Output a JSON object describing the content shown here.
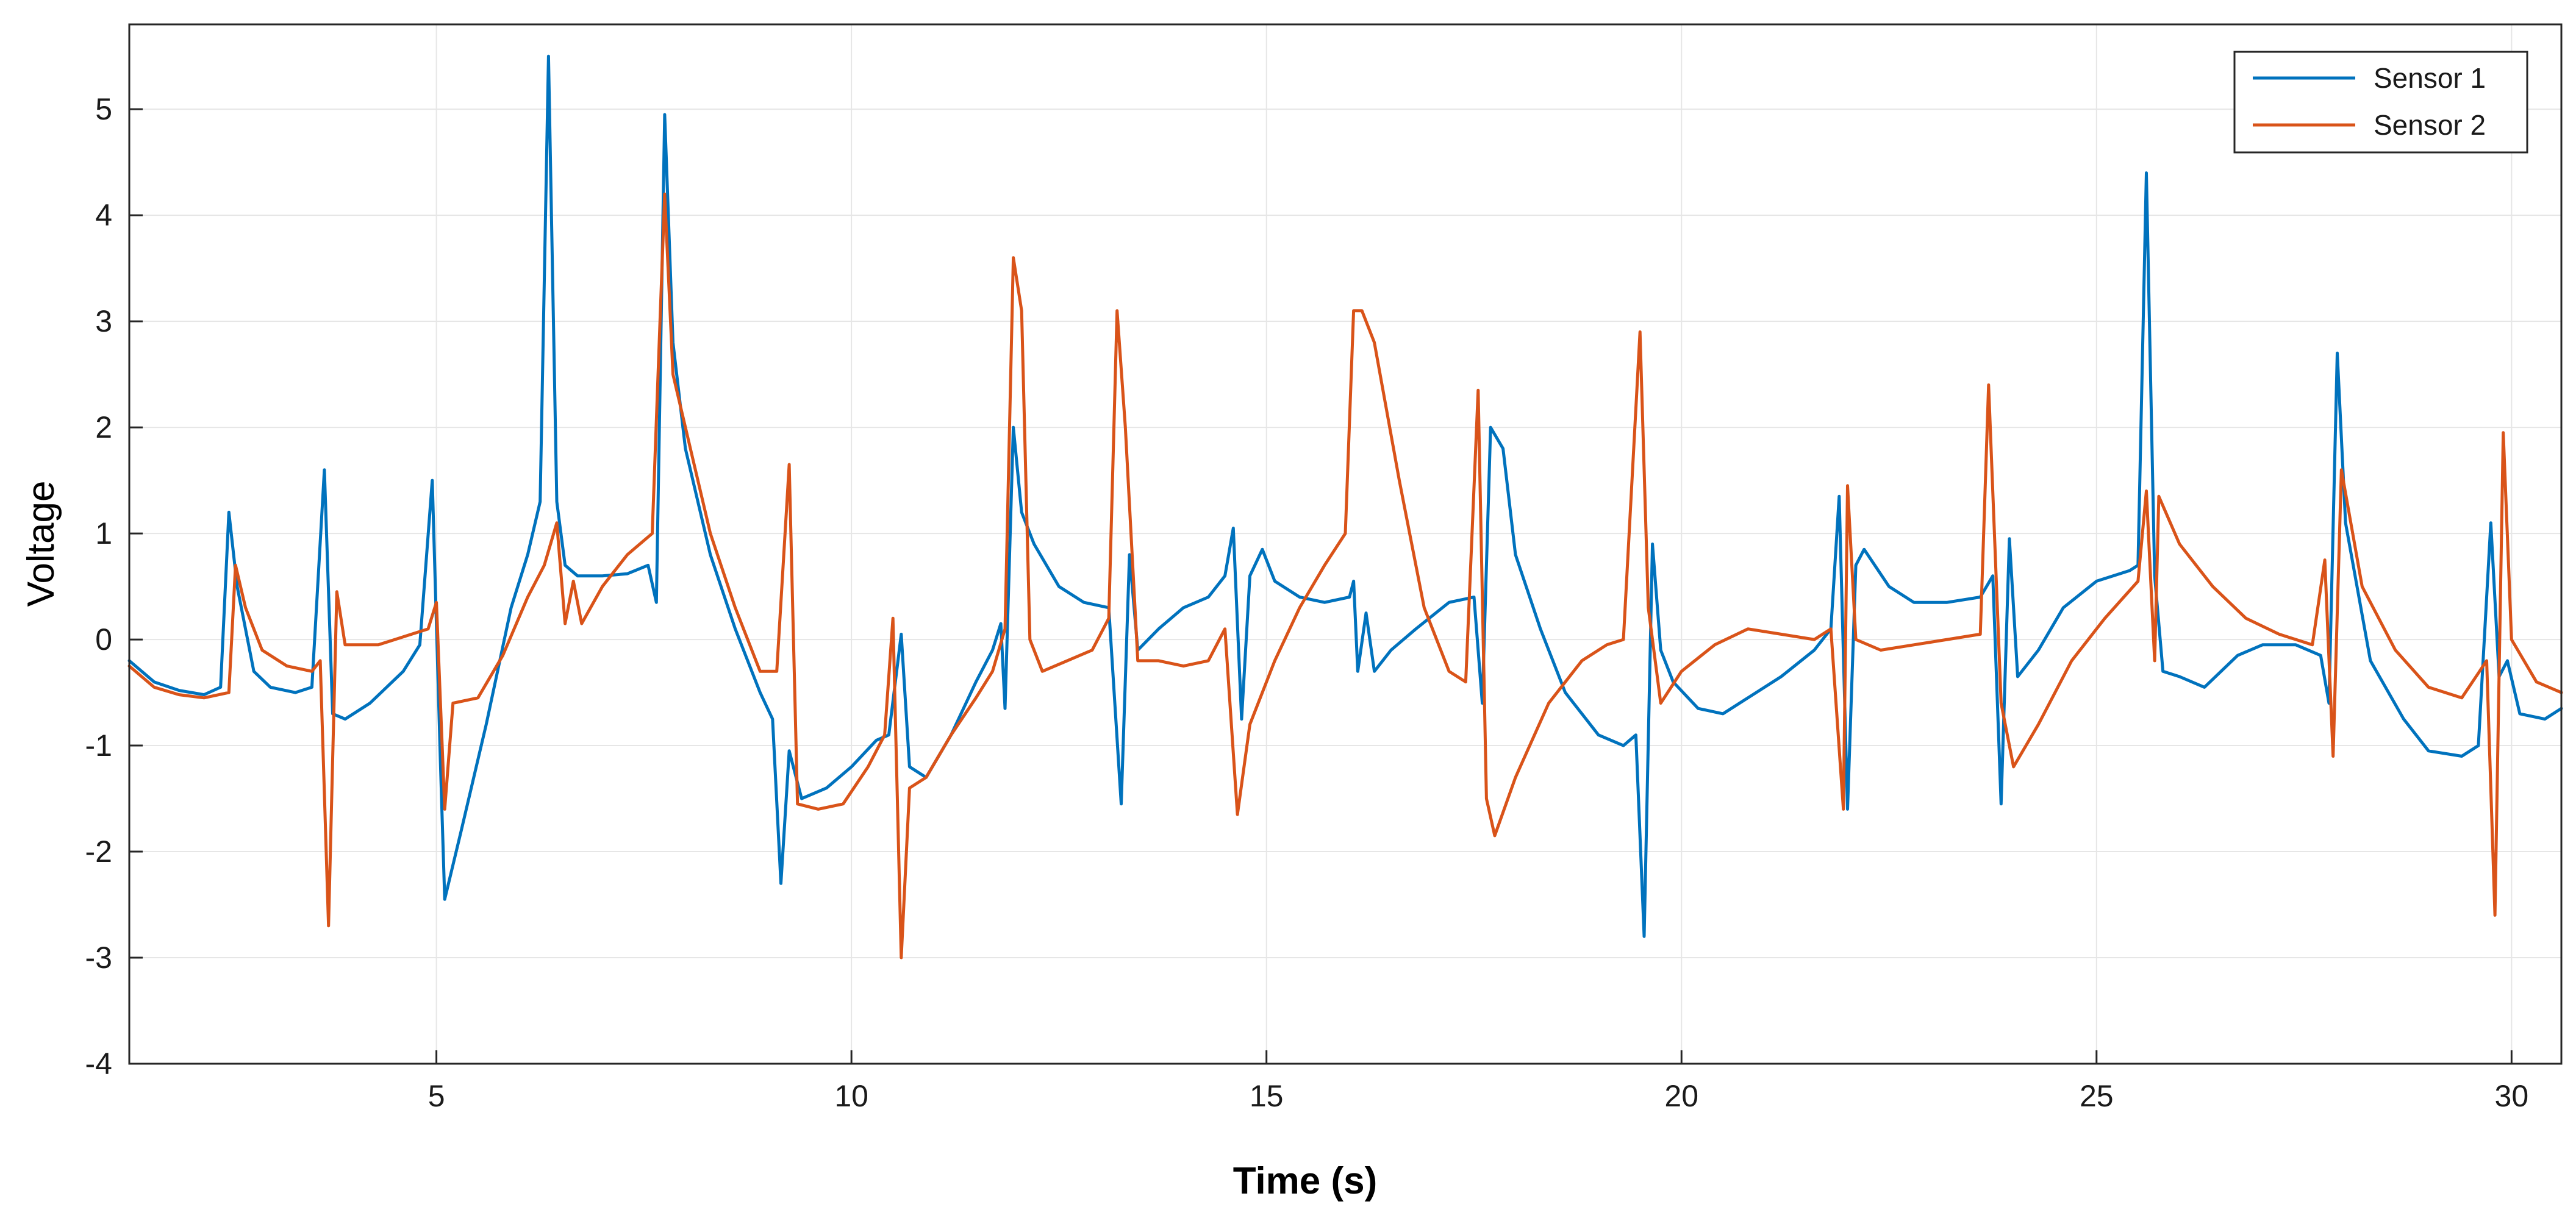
{
  "chart_data": {
    "type": "line",
    "title": "",
    "xlabel": "Time (s)",
    "ylabel": "Voltage",
    "xlim": [
      1.3,
      30.6
    ],
    "ylim": [
      -4,
      5.8
    ],
    "x_ticks": [
      5,
      10,
      15,
      20,
      25,
      30
    ],
    "y_ticks": [
      -4,
      -3,
      -2,
      -1,
      0,
      1,
      2,
      3,
      4,
      5
    ],
    "grid": true,
    "legend_position": "top-right",
    "series": [
      {
        "name": "Sensor 1",
        "color": "#0072BD",
        "points": [
          [
            1.3,
            -0.2
          ],
          [
            1.6,
            -0.4
          ],
          [
            1.9,
            -0.48
          ],
          [
            2.2,
            -0.52
          ],
          [
            2.4,
            -0.45
          ],
          [
            2.5,
            1.2
          ],
          [
            2.6,
            0.5
          ],
          [
            2.8,
            -0.3
          ],
          [
            3.0,
            -0.45
          ],
          [
            3.3,
            -0.5
          ],
          [
            3.5,
            -0.45
          ],
          [
            3.65,
            1.6
          ],
          [
            3.75,
            -0.7
          ],
          [
            3.9,
            -0.75
          ],
          [
            4.2,
            -0.6
          ],
          [
            4.6,
            -0.3
          ],
          [
            4.8,
            -0.05
          ],
          [
            4.95,
            1.5
          ],
          [
            5.05,
            -1.2
          ],
          [
            5.1,
            -2.45
          ],
          [
            5.3,
            -1.8
          ],
          [
            5.6,
            -0.8
          ],
          [
            5.9,
            0.3
          ],
          [
            6.1,
            0.8
          ],
          [
            6.25,
            1.3
          ],
          [
            6.35,
            5.5
          ],
          [
            6.45,
            1.3
          ],
          [
            6.55,
            0.7
          ],
          [
            6.7,
            0.6
          ],
          [
            7.0,
            0.6
          ],
          [
            7.3,
            0.62
          ],
          [
            7.55,
            0.7
          ],
          [
            7.65,
            0.35
          ],
          [
            7.75,
            4.95
          ],
          [
            7.85,
            2.8
          ],
          [
            8.0,
            1.8
          ],
          [
            8.3,
            0.8
          ],
          [
            8.6,
            0.1
          ],
          [
            8.9,
            -0.5
          ],
          [
            9.05,
            -0.75
          ],
          [
            9.15,
            -2.3
          ],
          [
            9.25,
            -1.05
          ],
          [
            9.4,
            -1.5
          ],
          [
            9.7,
            -1.4
          ],
          [
            10.0,
            -1.2
          ],
          [
            10.3,
            -0.95
          ],
          [
            10.45,
            -0.9
          ],
          [
            10.6,
            0.05
          ],
          [
            10.7,
            -1.2
          ],
          [
            10.9,
            -1.3
          ],
          [
            11.2,
            -0.9
          ],
          [
            11.5,
            -0.4
          ],
          [
            11.7,
            -0.1
          ],
          [
            11.8,
            0.15
          ],
          [
            11.85,
            -0.65
          ],
          [
            11.95,
            2.0
          ],
          [
            12.05,
            1.2
          ],
          [
            12.2,
            0.9
          ],
          [
            12.5,
            0.5
          ],
          [
            12.8,
            0.35
          ],
          [
            13.1,
            0.3
          ],
          [
            13.25,
            -1.55
          ],
          [
            13.35,
            0.8
          ],
          [
            13.45,
            -0.1
          ],
          [
            13.7,
            0.1
          ],
          [
            14.0,
            0.3
          ],
          [
            14.3,
            0.4
          ],
          [
            14.5,
            0.6
          ],
          [
            14.6,
            1.05
          ],
          [
            14.7,
            -0.75
          ],
          [
            14.8,
            0.6
          ],
          [
            14.95,
            0.85
          ],
          [
            15.1,
            0.55
          ],
          [
            15.4,
            0.4
          ],
          [
            15.7,
            0.35
          ],
          [
            16.0,
            0.4
          ],
          [
            16.05,
            0.55
          ],
          [
            16.1,
            -0.3
          ],
          [
            16.2,
            0.25
          ],
          [
            16.3,
            -0.3
          ],
          [
            16.5,
            -0.1
          ],
          [
            16.8,
            0.1
          ],
          [
            17.2,
            0.35
          ],
          [
            17.5,
            0.4
          ],
          [
            17.6,
            -0.6
          ],
          [
            17.7,
            2.0
          ],
          [
            17.85,
            1.8
          ],
          [
            18.0,
            0.8
          ],
          [
            18.3,
            0.1
          ],
          [
            18.6,
            -0.5
          ],
          [
            19.0,
            -0.9
          ],
          [
            19.3,
            -1.0
          ],
          [
            19.45,
            -0.9
          ],
          [
            19.55,
            -2.8
          ],
          [
            19.65,
            0.9
          ],
          [
            19.75,
            -0.1
          ],
          [
            19.9,
            -0.4
          ],
          [
            20.2,
            -0.65
          ],
          [
            20.5,
            -0.7
          ],
          [
            20.8,
            -0.55
          ],
          [
            21.2,
            -0.35
          ],
          [
            21.6,
            -0.1
          ],
          [
            21.8,
            0.1
          ],
          [
            21.9,
            1.35
          ],
          [
            22.0,
            -1.6
          ],
          [
            22.1,
            0.7
          ],
          [
            22.2,
            0.85
          ],
          [
            22.5,
            0.5
          ],
          [
            22.8,
            0.35
          ],
          [
            23.2,
            0.35
          ],
          [
            23.6,
            0.4
          ],
          [
            23.75,
            0.6
          ],
          [
            23.85,
            -1.55
          ],
          [
            23.95,
            0.95
          ],
          [
            24.05,
            -0.35
          ],
          [
            24.3,
            -0.1
          ],
          [
            24.6,
            0.3
          ],
          [
            25.0,
            0.55
          ],
          [
            25.4,
            0.65
          ],
          [
            25.5,
            0.7
          ],
          [
            25.6,
            4.4
          ],
          [
            25.7,
            0.6
          ],
          [
            25.8,
            -0.3
          ],
          [
            26.0,
            -0.35
          ],
          [
            26.3,
            -0.45
          ],
          [
            26.7,
            -0.15
          ],
          [
            27.0,
            -0.05
          ],
          [
            27.4,
            -0.05
          ],
          [
            27.7,
            -0.15
          ],
          [
            27.8,
            -0.6
          ],
          [
            27.9,
            2.7
          ],
          [
            28.0,
            1.1
          ],
          [
            28.3,
            -0.2
          ],
          [
            28.7,
            -0.75
          ],
          [
            29.0,
            -1.05
          ],
          [
            29.4,
            -1.1
          ],
          [
            29.6,
            -1.0
          ],
          [
            29.75,
            1.1
          ],
          [
            29.85,
            -0.35
          ],
          [
            29.95,
            -0.2
          ],
          [
            30.1,
            -0.7
          ],
          [
            30.4,
            -0.75
          ],
          [
            30.6,
            -0.65
          ]
        ]
      },
      {
        "name": "Sensor 2",
        "color": "#D95319",
        "points": [
          [
            1.3,
            -0.25
          ],
          [
            1.6,
            -0.45
          ],
          [
            1.9,
            -0.52
          ],
          [
            2.2,
            -0.55
          ],
          [
            2.5,
            -0.5
          ],
          [
            2.58,
            0.7
          ],
          [
            2.7,
            0.3
          ],
          [
            2.9,
            -0.1
          ],
          [
            3.2,
            -0.25
          ],
          [
            3.5,
            -0.3
          ],
          [
            3.6,
            -0.2
          ],
          [
            3.7,
            -2.7
          ],
          [
            3.8,
            0.45
          ],
          [
            3.9,
            -0.05
          ],
          [
            4.3,
            -0.05
          ],
          [
            4.7,
            0.05
          ],
          [
            4.9,
            0.1
          ],
          [
            5.0,
            0.35
          ],
          [
            5.1,
            -1.6
          ],
          [
            5.2,
            -0.6
          ],
          [
            5.5,
            -0.55
          ],
          [
            5.8,
            -0.15
          ],
          [
            6.1,
            0.4
          ],
          [
            6.3,
            0.7
          ],
          [
            6.45,
            1.1
          ],
          [
            6.55,
            0.15
          ],
          [
            6.65,
            0.55
          ],
          [
            6.75,
            0.15
          ],
          [
            7.0,
            0.5
          ],
          [
            7.3,
            0.8
          ],
          [
            7.6,
            1.0
          ],
          [
            7.75,
            4.2
          ],
          [
            7.85,
            2.5
          ],
          [
            8.0,
            2.0
          ],
          [
            8.3,
            1.0
          ],
          [
            8.6,
            0.3
          ],
          [
            8.9,
            -0.3
          ],
          [
            9.1,
            -0.3
          ],
          [
            9.25,
            1.65
          ],
          [
            9.35,
            -1.55
          ],
          [
            9.6,
            -1.6
          ],
          [
            9.9,
            -1.55
          ],
          [
            10.2,
            -1.2
          ],
          [
            10.4,
            -0.9
          ],
          [
            10.5,
            0.2
          ],
          [
            10.6,
            -3.0
          ],
          [
            10.7,
            -1.4
          ],
          [
            10.9,
            -1.3
          ],
          [
            11.2,
            -0.9
          ],
          [
            11.5,
            -0.55
          ],
          [
            11.7,
            -0.3
          ],
          [
            11.85,
            0.1
          ],
          [
            11.95,
            3.6
          ],
          [
            12.05,
            3.1
          ],
          [
            12.15,
            0.0
          ],
          [
            12.3,
            -0.3
          ],
          [
            12.6,
            -0.2
          ],
          [
            12.9,
            -0.1
          ],
          [
            13.1,
            0.2
          ],
          [
            13.2,
            3.1
          ],
          [
            13.3,
            2.0
          ],
          [
            13.45,
            -0.2
          ],
          [
            13.7,
            -0.2
          ],
          [
            14.0,
            -0.25
          ],
          [
            14.3,
            -0.2
          ],
          [
            14.5,
            0.1
          ],
          [
            14.65,
            -1.65
          ],
          [
            14.8,
            -0.8
          ],
          [
            15.1,
            -0.2
          ],
          [
            15.4,
            0.3
          ],
          [
            15.7,
            0.7
          ],
          [
            15.95,
            1.0
          ],
          [
            16.05,
            3.1
          ],
          [
            16.15,
            3.1
          ],
          [
            16.3,
            2.8
          ],
          [
            16.6,
            1.5
          ],
          [
            16.9,
            0.3
          ],
          [
            17.2,
            -0.3
          ],
          [
            17.4,
            -0.4
          ],
          [
            17.55,
            2.35
          ],
          [
            17.65,
            -1.5
          ],
          [
            17.75,
            -1.85
          ],
          [
            18.0,
            -1.3
          ],
          [
            18.4,
            -0.6
          ],
          [
            18.8,
            -0.2
          ],
          [
            19.1,
            -0.05
          ],
          [
            19.3,
            0.0
          ],
          [
            19.5,
            2.9
          ],
          [
            19.6,
            0.3
          ],
          [
            19.75,
            -0.6
          ],
          [
            20.0,
            -0.3
          ],
          [
            20.4,
            -0.05
          ],
          [
            20.8,
            0.1
          ],
          [
            21.2,
            0.05
          ],
          [
            21.6,
            0.0
          ],
          [
            21.8,
            0.1
          ],
          [
            21.95,
            -1.6
          ],
          [
            22.0,
            1.45
          ],
          [
            22.1,
            0.0
          ],
          [
            22.4,
            -0.1
          ],
          [
            22.8,
            -0.05
          ],
          [
            23.2,
            0.0
          ],
          [
            23.6,
            0.05
          ],
          [
            23.7,
            2.4
          ],
          [
            23.85,
            -0.6
          ],
          [
            24.0,
            -1.2
          ],
          [
            24.3,
            -0.8
          ],
          [
            24.7,
            -0.2
          ],
          [
            25.1,
            0.2
          ],
          [
            25.5,
            0.55
          ],
          [
            25.6,
            1.4
          ],
          [
            25.7,
            -0.2
          ],
          [
            25.75,
            1.35
          ],
          [
            26.0,
            0.9
          ],
          [
            26.4,
            0.5
          ],
          [
            26.8,
            0.2
          ],
          [
            27.2,
            0.05
          ],
          [
            27.6,
            -0.05
          ],
          [
            27.75,
            0.75
          ],
          [
            27.85,
            -1.1
          ],
          [
            27.95,
            1.6
          ],
          [
            28.2,
            0.5
          ],
          [
            28.6,
            -0.1
          ],
          [
            29.0,
            -0.45
          ],
          [
            29.4,
            -0.55
          ],
          [
            29.7,
            -0.2
          ],
          [
            29.8,
            -2.6
          ],
          [
            29.9,
            1.95
          ],
          [
            30.0,
            0.0
          ],
          [
            30.3,
            -0.4
          ],
          [
            30.6,
            -0.5
          ]
        ]
      }
    ]
  }
}
